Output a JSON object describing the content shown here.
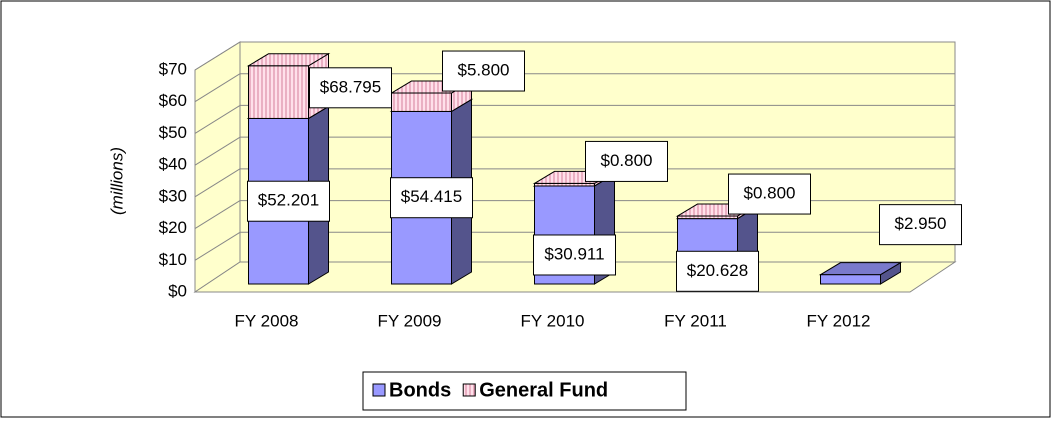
{
  "chart_data": {
    "type": "bar3d_stacked",
    "y_axis_label": "(millions)",
    "categories": [
      "FY 2008",
      "FY 2009",
      "FY 2010",
      "FY 2011",
      "FY 2012"
    ],
    "series": [
      {
        "name": "Bonds",
        "color": "#9999ff",
        "values": [
          52.201,
          54.415,
          30.911,
          20.628,
          2.95
        ],
        "value_labels": [
          "$52.201",
          "$54.415",
          "$30.911",
          "$20.628",
          "$2.950"
        ]
      },
      {
        "name": "General Fund",
        "color": "#ffccdd",
        "values": [
          16.6,
          5.8,
          0.8,
          0.8,
          null
        ],
        "value_labels": [
          null,
          "$5.800",
          "$0.800",
          "$0.800",
          null
        ]
      }
    ],
    "annotations": [
      {
        "text": "$68.795",
        "category": 0
      }
    ],
    "ylim": [
      0,
      70
    ],
    "yticks": [
      {
        "value": 0,
        "label": "$0"
      },
      {
        "value": 10,
        "label": "$10"
      },
      {
        "value": 20,
        "label": "$20"
      },
      {
        "value": 30,
        "label": "$30"
      },
      {
        "value": 40,
        "label": "$40"
      },
      {
        "value": 50,
        "label": "$50"
      },
      {
        "value": 60,
        "label": "$60"
      },
      {
        "value": 70,
        "label": "$70"
      }
    ],
    "grid": true,
    "legend": "bottom"
  }
}
